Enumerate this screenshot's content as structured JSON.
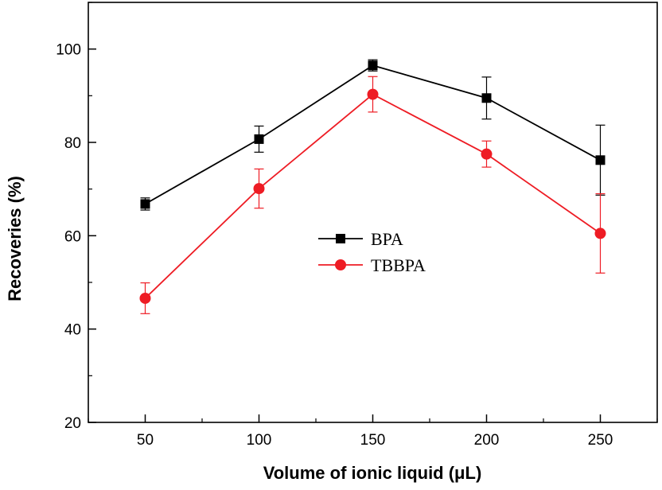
{
  "chart_data": {
    "type": "line",
    "title": "",
    "xlabel": "Volume of ionic liquid (μL)",
    "ylabel": "Recoveries (%)",
    "x": [
      50,
      100,
      150,
      200,
      250
    ],
    "xlim": [
      25,
      275
    ],
    "ylim": [
      20,
      110
    ],
    "xticks": [
      50,
      100,
      150,
      200,
      250
    ],
    "yticks": [
      20,
      40,
      60,
      80,
      100
    ],
    "xtick_labels": [
      "50",
      "100",
      "150",
      "200",
      "250"
    ],
    "ytick_labels": [
      "20",
      "40",
      "60",
      "80",
      "100"
    ],
    "grid": false,
    "legend_position": "center",
    "series": [
      {
        "name": "BPA",
        "color": "#000000",
        "marker": "square",
        "values": [
          66.8,
          80.7,
          96.5,
          89.5,
          76.2
        ],
        "errors": [
          1.3,
          2.8,
          1.2,
          4.5,
          7.5
        ]
      },
      {
        "name": "TBBPA",
        "color": "#ee1c24",
        "marker": "circle",
        "values": [
          46.6,
          70.1,
          90.3,
          77.5,
          60.5
        ],
        "errors": [
          3.3,
          4.2,
          3.8,
          2.8,
          8.5
        ]
      }
    ]
  }
}
